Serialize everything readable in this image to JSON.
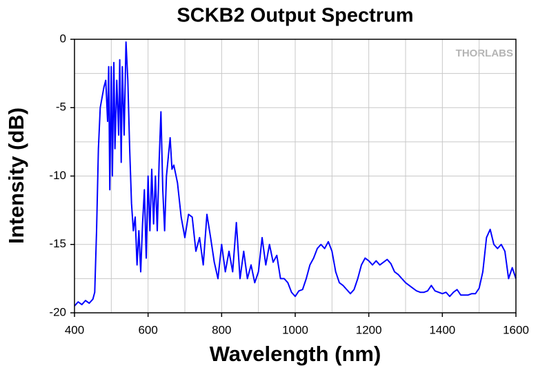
{
  "chart_data": {
    "type": "line",
    "title": "SCKB2 Output Spectrum",
    "xlabel": "Wavelength (nm)",
    "ylabel": "Intensity (dB)",
    "watermark": "THORLABS",
    "xlim": [
      400,
      1600
    ],
    "ylim": [
      -20,
      0
    ],
    "xticks": [
      400,
      600,
      800,
      1000,
      1200,
      1400,
      1600
    ],
    "yticks": [
      -20,
      -15,
      -10,
      -5,
      0
    ],
    "xminorticks": [
      500,
      700,
      900,
      1100,
      1300,
      1500
    ],
    "yminorticks": [
      -17.5,
      -12.5,
      -7.5,
      -2.5
    ],
    "grid": true,
    "series": [
      {
        "name": "SCKB2",
        "color": "#0000ff",
        "x": [
          400,
          410,
          420,
          430,
          440,
          450,
          455,
          460,
          465,
          470,
          480,
          485,
          490,
          493,
          496,
          500,
          503,
          507,
          510,
          515,
          520,
          523,
          527,
          530,
          535,
          540,
          545,
          550,
          555,
          560,
          565,
          570,
          575,
          580,
          585,
          590,
          595,
          600,
          605,
          610,
          615,
          620,
          625,
          630,
          635,
          640,
          645,
          650,
          660,
          665,
          670,
          680,
          690,
          700,
          710,
          720,
          730,
          740,
          750,
          760,
          770,
          780,
          790,
          800,
          810,
          820,
          830,
          840,
          850,
          860,
          870,
          880,
          890,
          900,
          910,
          920,
          930,
          940,
          950,
          960,
          970,
          980,
          990,
          1000,
          1010,
          1020,
          1030,
          1040,
          1050,
          1060,
          1070,
          1080,
          1090,
          1100,
          1110,
          1120,
          1130,
          1140,
          1150,
          1160,
          1170,
          1180,
          1190,
          1200,
          1210,
          1220,
          1230,
          1240,
          1250,
          1260,
          1270,
          1280,
          1290,
          1300,
          1310,
          1320,
          1330,
          1340,
          1350,
          1360,
          1370,
          1380,
          1390,
          1400,
          1410,
          1420,
          1430,
          1440,
          1450,
          1460,
          1470,
          1480,
          1490,
          1500,
          1510,
          1520,
          1530,
          1540,
          1550,
          1560,
          1570,
          1580,
          1590,
          1600
        ],
        "values": [
          -19.5,
          -19.2,
          -19.4,
          -19.1,
          -19.3,
          -19.0,
          -18.5,
          -14,
          -8,
          -5,
          -3.5,
          -3,
          -6,
          -2,
          -11,
          -2,
          -10,
          -1.7,
          -8,
          -3,
          -7,
          -1.5,
          -9,
          -2,
          -7,
          -0.2,
          -3,
          -8,
          -12,
          -14,
          -13,
          -16.5,
          -14,
          -17,
          -13.5,
          -11,
          -16,
          -10,
          -14,
          -9.5,
          -13.5,
          -10,
          -14,
          -9,
          -5.3,
          -11,
          -14,
          -10,
          -7.2,
          -9.5,
          -9.2,
          -10.5,
          -13,
          -14.5,
          -12.8,
          -13,
          -15.5,
          -14.5,
          -16.5,
          -12.8,
          -14.5,
          -16.3,
          -17.5,
          -15,
          -17,
          -15.5,
          -17,
          -13.4,
          -17.5,
          -15.5,
          -17.5,
          -16.5,
          -17.8,
          -17,
          -14.5,
          -16.5,
          -15,
          -16.3,
          -15.8,
          -17.5,
          -17.5,
          -17.8,
          -18.5,
          -18.8,
          -18.4,
          -18.3,
          -17.5,
          -16.5,
          -16,
          -15.3,
          -15,
          -15.3,
          -14.8,
          -15.5,
          -17,
          -17.8,
          -18,
          -18.3,
          -18.6,
          -18.3,
          -17.5,
          -16.5,
          -16,
          -16.2,
          -16.5,
          -16.2,
          -16.5,
          -16.3,
          -16.1,
          -16.4,
          -17,
          -17.2,
          -17.5,
          -17.8,
          -18,
          -18.2,
          -18.4,
          -18.5,
          -18.5,
          -18.4,
          -18,
          -18.4,
          -18.5,
          -18.6,
          -18.5,
          -18.8,
          -18.5,
          -18.3,
          -18.7,
          -18.7,
          -18.7,
          -18.6,
          -18.6,
          -18.2,
          -17,
          -14.5,
          -13.9,
          -15,
          -15.3,
          -15,
          -15.5,
          -17.5,
          -16.7,
          -17.5
        ]
      }
    ]
  }
}
